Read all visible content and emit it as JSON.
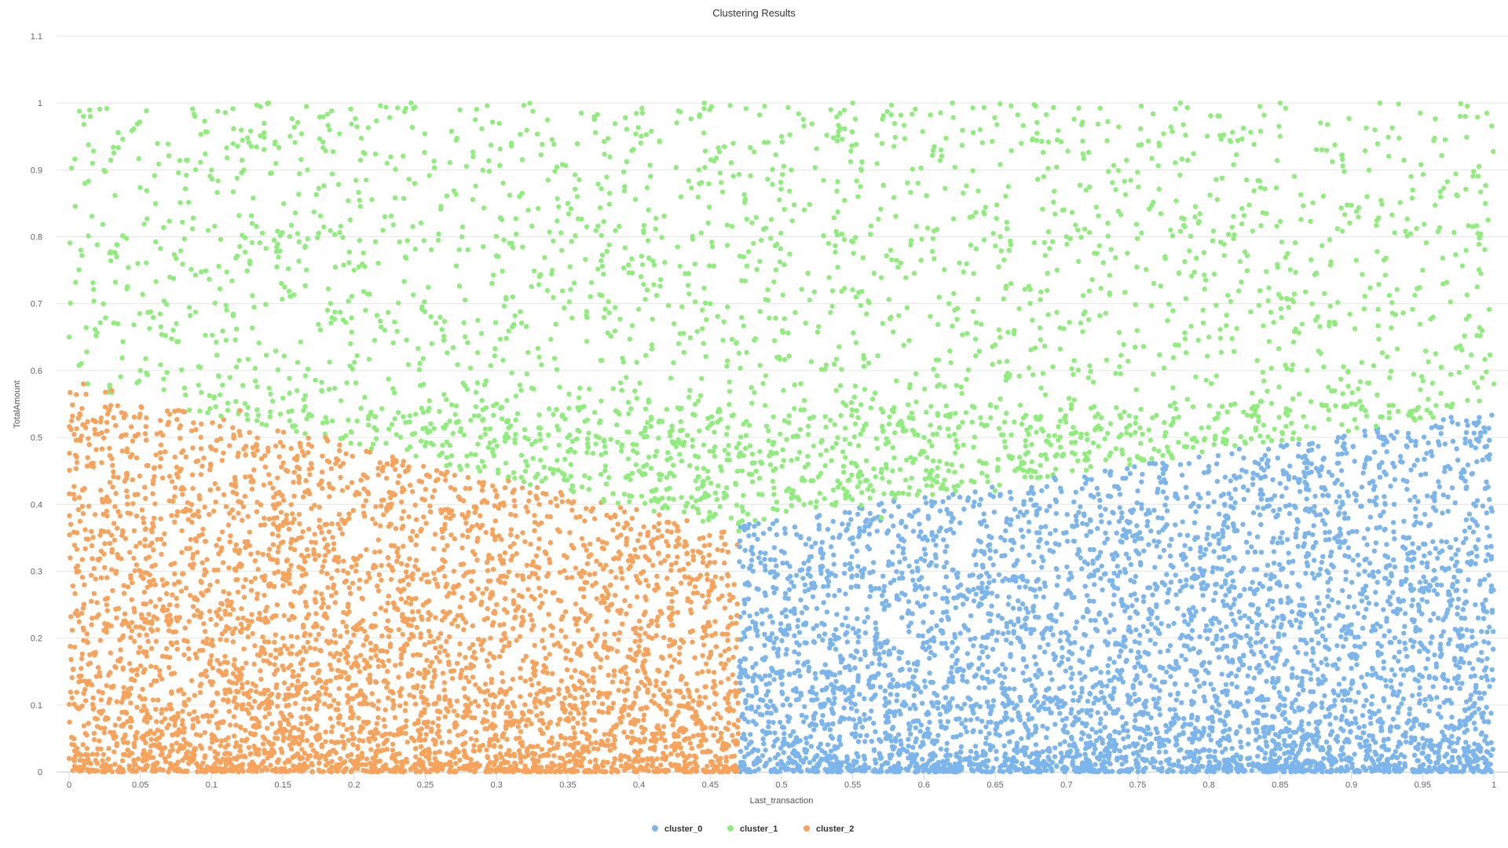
{
  "chart_data": {
    "type": "scatter",
    "title": "Clustering Results",
    "xlabel": "Last_transaction",
    "ylabel": "TotalAmount",
    "xlim": [
      0,
      1
    ],
    "ylim": [
      0,
      1.1
    ],
    "x_ticks": [
      "0",
      "0.05",
      "0.1",
      "0.15",
      "0.2",
      "0.25",
      "0.3",
      "0.35",
      "0.4",
      "0.45",
      "0.5",
      "0.55",
      "0.6",
      "0.65",
      "0.7",
      "0.75",
      "0.8",
      "0.85",
      "0.9",
      "0.95",
      "1"
    ],
    "y_ticks": [
      "0",
      "0.1",
      "0.2",
      "0.3",
      "0.4",
      "0.5",
      "0.6",
      "0.7",
      "0.8",
      "0.9",
      "1",
      "1.1"
    ],
    "grid": "horizontal",
    "legend_position": "bottom-center",
    "series": [
      {
        "name": "cluster_0",
        "color": "#7cb5ec",
        "points": [
          [
            0.48,
            0.3
          ],
          [
            0.5,
            0.33
          ],
          [
            0.52,
            0.12
          ],
          [
            0.55,
            0.35
          ],
          [
            0.58,
            0.05
          ],
          [
            0.6,
            0.25
          ],
          [
            0.62,
            0.38
          ],
          [
            0.65,
            0.15
          ],
          [
            0.67,
            0.4
          ],
          [
            0.7,
            0.08
          ],
          [
            0.72,
            0.3
          ],
          [
            0.75,
            0.42
          ],
          [
            0.78,
            0.2
          ],
          [
            0.8,
            0.45
          ],
          [
            0.82,
            0.1
          ],
          [
            0.85,
            0.35
          ],
          [
            0.87,
            0.48
          ],
          [
            0.9,
            0.22
          ],
          [
            0.92,
            0.5
          ],
          [
            0.95,
            0.05
          ],
          [
            0.97,
            0.53
          ],
          [
            0.99,
            0.28
          ],
          [
            0.74,
            0.02
          ],
          [
            0.88,
            0.01
          ],
          [
            0.53,
            0.22
          ],
          [
            0.63,
            0.06
          ],
          [
            0.83,
            0.18
          ],
          [
            0.93,
            0.4
          ]
        ]
      },
      {
        "name": "cluster_1",
        "color": "#90ed7d",
        "points": [
          [
            0.0,
            0.65
          ],
          [
            0.01,
            0.98
          ],
          [
            0.05,
            0.6
          ],
          [
            0.1,
            0.9
          ],
          [
            0.14,
            1.0
          ],
          [
            0.2,
            0.75
          ],
          [
            0.24,
            1.0
          ],
          [
            0.3,
            0.55
          ],
          [
            0.35,
            0.85
          ],
          [
            0.4,
            0.45
          ],
          [
            0.45,
            0.7
          ],
          [
            0.47,
            0.36
          ],
          [
            0.5,
            0.95
          ],
          [
            0.55,
            1.0
          ],
          [
            0.6,
            0.5
          ],
          [
            0.62,
            1.0
          ],
          [
            0.65,
            0.42
          ],
          [
            0.7,
            0.8
          ],
          [
            0.75,
            0.47
          ],
          [
            0.78,
            1.0
          ],
          [
            0.8,
            0.65
          ],
          [
            0.85,
            1.0
          ],
          [
            0.9,
            0.55
          ],
          [
            0.92,
            1.0
          ],
          [
            0.95,
            0.75
          ],
          [
            0.98,
            0.98
          ],
          [
            1.0,
            0.58
          ],
          [
            0.57,
            0.38
          ],
          [
            0.33,
            0.62
          ],
          [
            0.16,
            0.57
          ]
        ]
      },
      {
        "name": "cluster_2",
        "color": "#f7a35c",
        "points": [
          [
            0.0,
            0.02
          ],
          [
            0.01,
            0.58
          ],
          [
            0.03,
            0.57
          ],
          [
            0.05,
            0.3
          ],
          [
            0.08,
            0.48
          ],
          [
            0.1,
            0.1
          ],
          [
            0.12,
            0.54
          ],
          [
            0.15,
            0.2
          ],
          [
            0.18,
            0.5
          ],
          [
            0.2,
            0.05
          ],
          [
            0.22,
            0.45
          ],
          [
            0.25,
            0.15
          ],
          [
            0.28,
            0.44
          ],
          [
            0.3,
            0.25
          ],
          [
            0.33,
            0.4
          ],
          [
            0.35,
            0.08
          ],
          [
            0.38,
            0.38
          ],
          [
            0.4,
            0.18
          ],
          [
            0.42,
            0.36
          ],
          [
            0.45,
            0.03
          ],
          [
            0.46,
            0.34
          ],
          [
            0.47,
            0.12
          ],
          [
            0.13,
            0.01
          ],
          [
            0.37,
            0.01
          ],
          [
            0.07,
            0.22
          ],
          [
            0.27,
            0.3
          ]
        ]
      }
    ]
  }
}
